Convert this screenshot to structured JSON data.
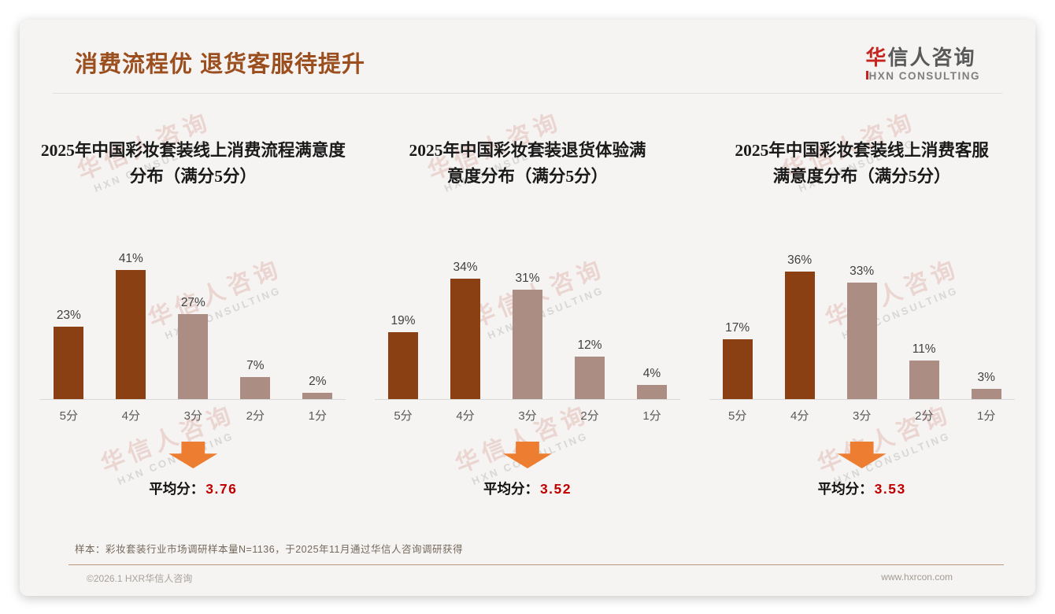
{
  "header": {
    "title": "消费流程优 退货客服待提升"
  },
  "logo": {
    "cn_first": "华",
    "cn_rest": "信人咨询",
    "en": "HXN CONSULTING"
  },
  "watermark": {
    "cn": "华信人咨询",
    "en": "HXN CONSULTING"
  },
  "colors": {
    "title_brown": "#9b4e1e",
    "bar_dark": "#8a4013",
    "bar_light": "#ab8d84",
    "arrow_orange": "#ed7d31",
    "average_red": "#c00000",
    "card_background": "#f5f4f2"
  },
  "chart_data": [
    {
      "type": "bar",
      "title": "2025年中国彩妆套装线上消费流程满意度\n分布（满分5分）",
      "categories": [
        "5分",
        "4分",
        "3分",
        "2分",
        "1分"
      ],
      "values": [
        23,
        41,
        27,
        7,
        2
      ],
      "value_labels": [
        "23%",
        "41%",
        "27%",
        "7%",
        "2%"
      ],
      "highlight_count": 2,
      "ylim": [
        0,
        45
      ],
      "grid": false,
      "average_label": "平均分：",
      "average_value": "3.76"
    },
    {
      "type": "bar",
      "title": "2025年中国彩妆套装退货体验满\n意度分布（满分5分）",
      "categories": [
        "5分",
        "4分",
        "3分",
        "2分",
        "1分"
      ],
      "values": [
        19,
        34,
        31,
        12,
        4
      ],
      "value_labels": [
        "19%",
        "34%",
        "31%",
        "12%",
        "4%"
      ],
      "highlight_count": 2,
      "ylim": [
        0,
        40
      ],
      "grid": false,
      "average_label": "平均分：",
      "average_value": "3.52"
    },
    {
      "type": "bar",
      "title": "2025年中国彩妆套装线上消费客服\n满意度分布（满分5分）",
      "categories": [
        "5分",
        "4分",
        "3分",
        "2分",
        "1分"
      ],
      "values": [
        17,
        36,
        33,
        11,
        3
      ],
      "value_labels": [
        "17%",
        "36%",
        "33%",
        "11%",
        "3%"
      ],
      "highlight_count": 2,
      "ylim": [
        0,
        40
      ],
      "grid": false,
      "average_label": "平均分：",
      "average_value": "3.53"
    }
  ],
  "footnote": "样本：彩妆套装行业市场调研样本量N=1136，于2025年11月通过华信人咨询调研获得",
  "footer": {
    "copyright": "©2026.1 HXR华信人咨询",
    "website": "www.hxrcon.com"
  }
}
